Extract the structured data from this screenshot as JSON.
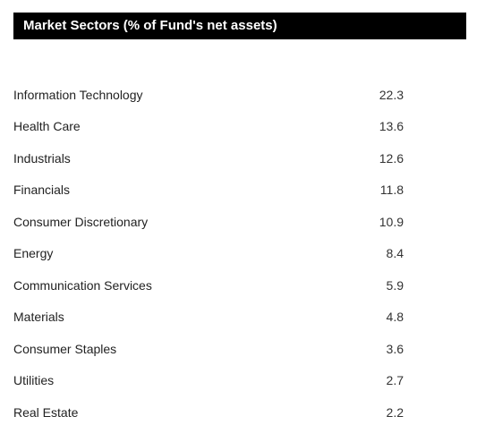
{
  "header": {
    "title": "Market Sectors (% of Fund's net assets)"
  },
  "sectors": [
    {
      "name": "Information Technology",
      "value": "22.3"
    },
    {
      "name": "Health Care",
      "value": "13.6"
    },
    {
      "name": "Industrials",
      "value": "12.6"
    },
    {
      "name": "Financials",
      "value": "11.8"
    },
    {
      "name": "Consumer Discretionary",
      "value": "10.9"
    },
    {
      "name": "Energy",
      "value": "8.4"
    },
    {
      "name": "Communication Services",
      "value": "5.9"
    },
    {
      "name": "Materials",
      "value": "4.8"
    },
    {
      "name": "Consumer Staples",
      "value": "3.6"
    },
    {
      "name": "Utilities",
      "value": "2.7"
    },
    {
      "name": "Real Estate",
      "value": "2.2"
    }
  ]
}
